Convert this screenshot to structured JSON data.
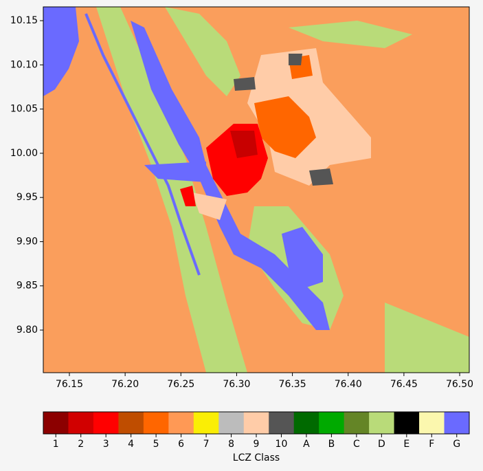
{
  "map": {
    "xlim": [
      76.1266,
      76.5086
    ],
    "ylim": [
      9.7518,
      10.1656
    ],
    "xticks": [
      76.15,
      {
        "value": 76.2,
        "label": "76.20"
      },
      76.25,
      {
        "value": 76.3,
        "label": "76.30"
      },
      76.35,
      {
        "value": 76.4,
        "label": "76.40"
      },
      76.45,
      {
        "value": 76.5,
        "label": "76.50"
      }
    ],
    "yticks": [
      {
        "value": 9.8,
        "label": "9.80"
      },
      9.85,
      {
        "value": 9.9,
        "label": "9.90"
      },
      9.95,
      {
        "value": 10,
        "label": "10.00"
      },
      10.05,
      {
        "value": 10.1,
        "label": "10.10"
      },
      10.15
    ]
  },
  "colorbar": {
    "label": "LCZ Class",
    "classes": [
      {
        "label": "1",
        "color": "#8c0000"
      },
      {
        "label": "2",
        "color": "#d10000"
      },
      {
        "label": "3",
        "color": "#ff0000"
      },
      {
        "label": "4",
        "color": "#bf4d00"
      },
      {
        "label": "5",
        "color": "#ff6600"
      },
      {
        "label": "6",
        "color": "#ff9955"
      },
      {
        "label": "7",
        "color": "#faee05"
      },
      {
        "label": "8",
        "color": "#bcbcbc"
      },
      {
        "label": "9",
        "color": "#ffcca8"
      },
      {
        "label": "10",
        "color": "#555555"
      },
      {
        "label": "A",
        "color": "#006a00"
      },
      {
        "label": "B",
        "color": "#00aa00"
      },
      {
        "label": "C",
        "color": "#648526"
      },
      {
        "label": "D",
        "color": "#b9db79"
      },
      {
        "label": "E",
        "color": "#000000"
      },
      {
        "label": "F",
        "color": "#fbf7ae"
      },
      {
        "label": "G",
        "color": "#6a6aff"
      }
    ]
  }
}
